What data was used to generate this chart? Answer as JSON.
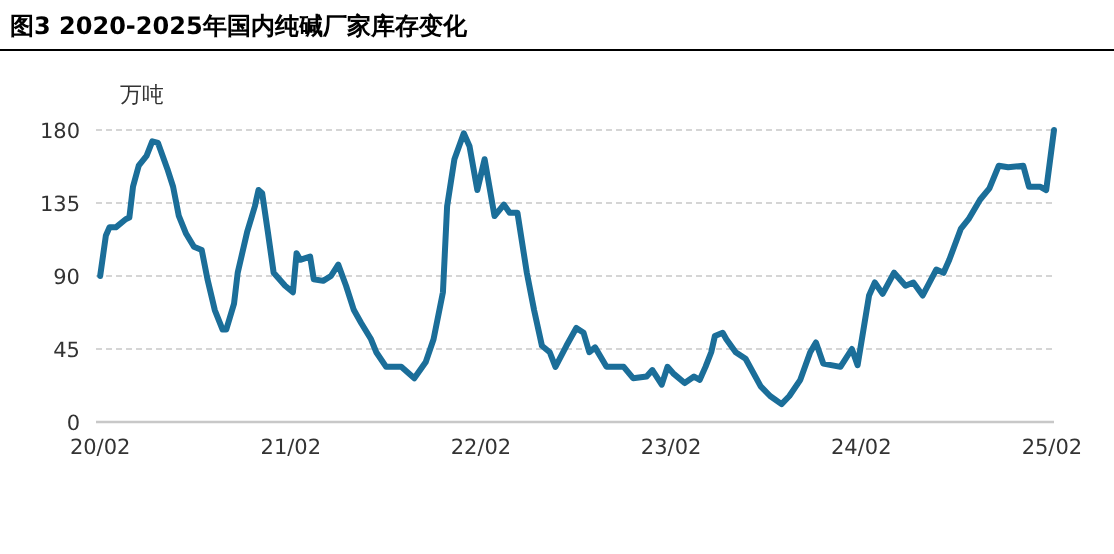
{
  "chart_data": {
    "type": "line",
    "title": "图3 2020-2025年国内纯碱厂家库存变化",
    "ylabel": "万吨",
    "x": [
      "2020-02-01",
      "2020-02-12",
      "2020-02-19",
      "2020-03-02",
      "2020-03-21",
      "2020-03-28",
      "2020-04-04",
      "2020-04-15",
      "2020-04-30",
      "2020-05-11",
      "2020-05-22",
      "2020-06-09",
      "2020-06-20",
      "2020-07-01",
      "2020-07-15",
      "2020-07-30",
      "2020-08-14",
      "2020-08-25",
      "2020-09-08",
      "2020-09-23",
      "2020-09-30",
      "2020-10-15",
      "2020-10-22",
      "2020-11-09",
      "2020-11-24",
      "2020-12-01",
      "2020-12-08",
      "2020-12-19",
      "2020-12-30",
      "2021-01-21",
      "2021-02-05",
      "2021-02-12",
      "2021-02-19",
      "2021-03-10",
      "2021-03-17",
      "2021-04-04",
      "2021-04-19",
      "2021-05-03",
      "2021-05-18",
      "2021-06-02",
      "2021-06-16",
      "2021-07-05",
      "2021-07-15",
      "2021-08-03",
      "2021-09-01",
      "2021-09-26",
      "2021-10-18",
      "2021-11-02",
      "2021-11-20",
      "2021-11-28",
      "2021-12-12",
      "2021-12-30",
      "2022-01-10",
      "2022-01-25",
      "2022-02-08",
      "2022-02-27",
      "2022-03-17",
      "2022-03-28",
      "2022-04-12",
      "2022-04-30",
      "2022-05-14",
      "2022-05-29",
      "2022-06-13",
      "2022-06-24",
      "2022-07-15",
      "2022-08-03",
      "2022-08-17",
      "2022-08-28",
      "2022-09-08",
      "2022-09-30",
      "2022-10-15",
      "2022-11-02",
      "2022-11-20",
      "2022-12-16",
      "2022-12-27",
      "2023-01-14",
      "2023-01-25",
      "2023-02-05",
      "2023-02-27",
      "2023-03-17",
      "2023-03-28",
      "2023-04-08",
      "2023-04-19",
      "2023-04-26",
      "2023-05-11",
      "2023-05-18",
      "2023-06-05",
      "2023-06-24",
      "2023-07-23",
      "2023-08-10",
      "2023-09-01",
      "2023-09-16",
      "2023-10-07",
      "2023-10-26",
      "2023-11-06",
      "2023-11-20",
      "2023-12-23",
      "2024-01-14",
      "2024-01-25",
      "2024-02-16",
      "2024-02-27",
      "2024-03-13",
      "2024-04-04",
      "2024-04-26",
      "2024-05-11",
      "2024-05-29",
      "2024-06-24",
      "2024-07-08",
      "2024-07-19",
      "2024-08-10",
      "2024-08-25",
      "2024-09-16",
      "2024-10-04",
      "2024-10-22",
      "2024-11-09",
      "2024-12-08",
      "2024-12-19",
      "2025-01-10",
      "2025-01-21",
      "2025-02-05"
    ],
    "series": [
      {
        "color": "#1b6e99",
        "values": [
          90,
          115,
          120,
          120,
          125,
          126,
          145,
          158,
          164,
          173,
          172,
          156,
          145,
          127,
          116,
          108,
          106,
          88,
          69,
          57,
          57,
          73,
          92,
          117,
          133,
          143,
          141,
          117,
          92,
          84,
          80,
          104,
          100,
          102,
          88,
          87,
          90,
          97,
          84,
          69,
          61,
          51,
          43,
          34,
          34,
          27,
          37,
          51,
          80,
          133,
          162,
          178,
          170,
          143,
          162,
          127,
          134,
          129,
          129,
          92,
          69,
          47,
          43,
          34,
          47,
          58,
          55,
          43,
          46,
          34,
          34,
          34,
          27,
          28,
          32,
          23,
          34,
          30,
          24,
          28,
          26,
          34,
          43,
          53,
          55,
          51,
          43,
          39,
          22,
          16,
          11,
          16,
          26,
          43,
          49,
          36,
          34,
          45,
          35,
          78,
          86,
          79,
          92,
          84,
          86,
          78,
          94,
          92,
          100,
          119,
          125,
          137,
          144,
          158,
          157,
          158,
          145,
          145,
          143,
          180
        ]
      }
    ],
    "xlim": [
      "2020-01-24",
      "2025-02-05"
    ],
    "xticks": [
      {
        "value": "2020-02-01",
        "label": "20/02"
      },
      {
        "value": "2021-02-01",
        "label": "21/02"
      },
      {
        "value": "2022-02-01",
        "label": "22/02"
      },
      {
        "value": "2023-02-01",
        "label": "23/02"
      },
      {
        "value": "2024-02-01",
        "label": "24/02"
      },
      {
        "value": "2025-02-01",
        "label": "25/02"
      }
    ],
    "ylim": [
      0,
      180
    ],
    "yticks": [
      0,
      45,
      90,
      135,
      180
    ],
    "grid": "y",
    "marker": "none",
    "line_style": "solid"
  }
}
